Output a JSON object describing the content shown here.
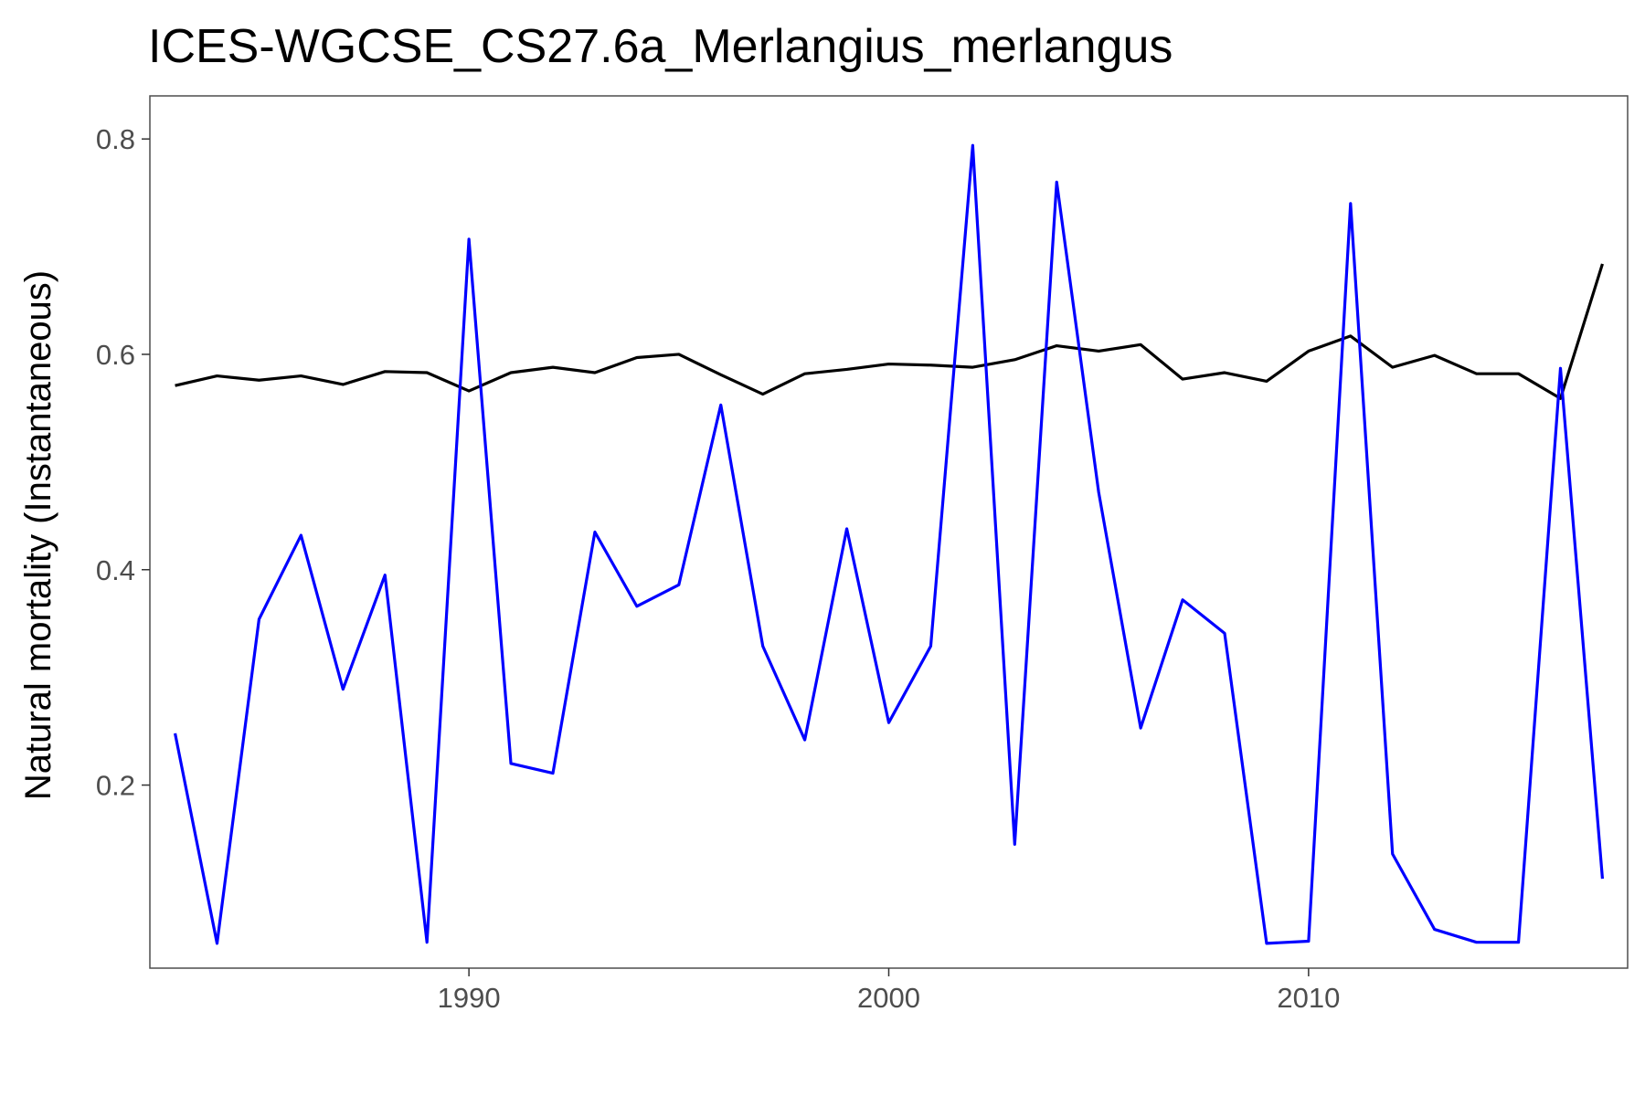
{
  "chart_data": {
    "type": "line",
    "title": "ICES-WGCSE_CS27.6a_Merlangius_merlangus",
    "xlabel": "",
    "ylabel": "Natural mortality (Instantaneous)",
    "xlim": [
      1982.4,
      2017.6
    ],
    "ylim": [
      0.03,
      0.84
    ],
    "x_ticks": [
      "1990",
      "2000",
      "2010"
    ],
    "y_ticks": [
      "0.2",
      "0.4",
      "0.6",
      "0.8"
    ],
    "grid": false,
    "legend": "none",
    "x": [
      1983,
      1984,
      1985,
      1986,
      1987,
      1988,
      1989,
      1990,
      1991,
      1992,
      1993,
      1994,
      1995,
      1996,
      1997,
      1998,
      1999,
      2000,
      2001,
      2002,
      2003,
      2004,
      2005,
      2006,
      2007,
      2008,
      2009,
      2010,
      2011,
      2012,
      2013,
      2014,
      2015,
      2016,
      2017
    ],
    "series": [
      {
        "color": "#000000",
        "values": [
          0.571,
          0.58,
          0.576,
          0.58,
          0.572,
          0.584,
          0.583,
          0.566,
          0.583,
          0.588,
          0.583,
          0.597,
          0.6,
          0.581,
          0.563,
          0.582,
          0.586,
          0.591,
          0.59,
          0.588,
          0.595,
          0.608,
          0.603,
          0.609,
          0.577,
          0.583,
          0.575,
          0.603,
          0.617,
          0.588,
          0.599,
          0.582,
          0.582,
          0.559,
          0.684
        ]
      },
      {
        "color": "#0000ff",
        "values": [
          0.248,
          0.053,
          0.354,
          0.432,
          0.289,
          0.395,
          0.054,
          0.707,
          0.22,
          0.211,
          0.435,
          0.366,
          0.386,
          0.553,
          0.329,
          0.242,
          0.438,
          0.258,
          0.329,
          0.794,
          0.145,
          0.76,
          0.472,
          0.253,
          0.372,
          0.341,
          0.053,
          0.055,
          0.74,
          0.136,
          0.066,
          0.054,
          0.054,
          0.587,
          0.113
        ]
      }
    ]
  }
}
